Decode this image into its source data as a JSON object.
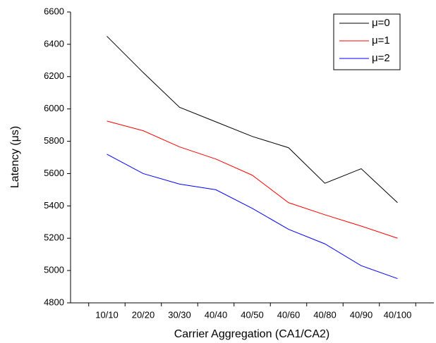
{
  "chart_data": {
    "type": "line",
    "x_label": "Carrier Aggregation (CA1/CA2)",
    "y_label": "Latency (μs)",
    "categories": [
      "10/10",
      "20/20",
      "30/30",
      "40/40",
      "40/50",
      "40/60",
      "40/80",
      "40/90",
      "40/100"
    ],
    "series": [
      {
        "name": "μ=0",
        "color": "#000000",
        "values": [
          6450,
          6225,
          6010,
          5920,
          5830,
          5760,
          5540,
          5630,
          5420
        ]
      },
      {
        "name": "μ=1",
        "color": "#ff0000",
        "values": [
          5925,
          5865,
          5765,
          5690,
          5590,
          5420,
          5345,
          5275,
          5200
        ]
      },
      {
        "name": "μ=2",
        "color": "#0000ff",
        "values": [
          5720,
          5600,
          5535,
          5500,
          5385,
          5255,
          5165,
          5030,
          4950
        ]
      }
    ],
    "ylim": [
      4800,
      6600
    ],
    "yticks": [
      4800,
      5000,
      5200,
      5400,
      5600,
      5800,
      6000,
      6200,
      6400,
      6600
    ],
    "legend": "upper right"
  }
}
